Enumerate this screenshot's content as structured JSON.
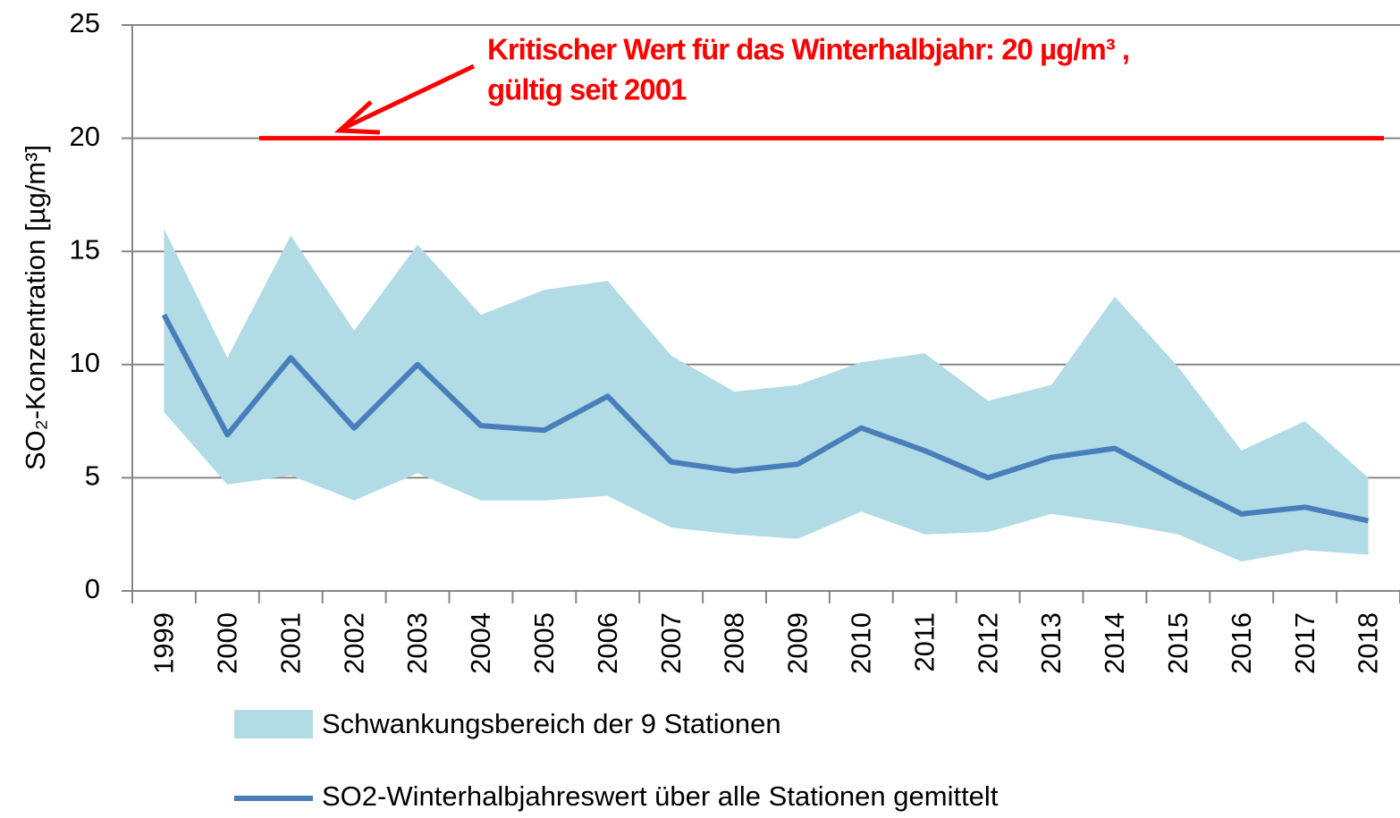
{
  "chart_data": {
    "type": "line",
    "y_label": "SO₂-Konzentration [µg/m³]",
    "categories": [
      "1999",
      "2000",
      "2001",
      "2002",
      "2003",
      "2004",
      "2005",
      "2006",
      "2007",
      "2008",
      "2009",
      "2010",
      "2011",
      "2012",
      "2013",
      "2014",
      "2015",
      "2016",
      "2017",
      "2018"
    ],
    "range": {
      "name": "Schwankungsbereich der 9 Stationen",
      "color": "#b1dbe5",
      "upper": [
        16.0,
        10.3,
        15.7,
        11.5,
        15.3,
        12.2,
        13.3,
        13.7,
        10.4,
        8.8,
        9.1,
        10.1,
        10.5,
        8.4,
        9.1,
        13.0,
        9.9,
        6.2,
        7.5,
        5.0
      ],
      "lower": [
        7.9,
        4.7,
        5.1,
        4.0,
        5.2,
        4.0,
        4.0,
        4.2,
        2.8,
        2.5,
        2.3,
        3.5,
        2.5,
        2.6,
        3.4,
        3.0,
        2.5,
        1.3,
        1.8,
        1.6
      ]
    },
    "series": [
      {
        "name": "SO2-Winterhalbjahreswert über alle Stationen gemittelt",
        "color": "#4a7ebb",
        "values": [
          12.2,
          6.9,
          10.3,
          7.2,
          10.0,
          7.3,
          7.1,
          8.6,
          5.7,
          5.3,
          5.6,
          7.2,
          6.2,
          5.0,
          5.9,
          6.3,
          4.8,
          3.4,
          3.7,
          3.1
        ]
      }
    ],
    "threshold": {
      "value": 20,
      "from": "2001",
      "color": "#ff0000",
      "annotation": [
        "Kritischer Wert für das Winterhalbjahr: 20 µg/m³ ,",
        "gültig seit 2001"
      ]
    },
    "ylim": [
      0,
      25
    ],
    "yticks": [
      0,
      5,
      10,
      15,
      20,
      25
    ],
    "grid": true
  }
}
